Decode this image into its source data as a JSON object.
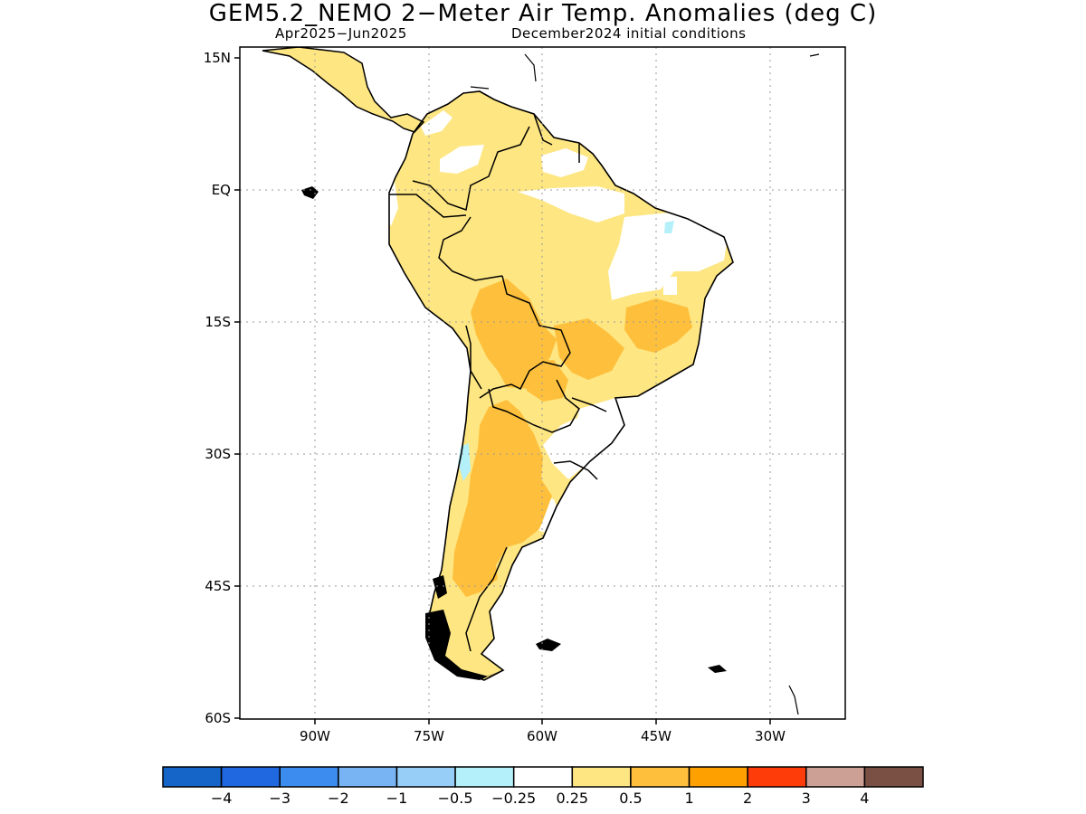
{
  "title": "GEM5.2_NEMO 2−Meter Air Temp. Anomalies (deg C)",
  "subtitle_left": "Apr2025−Jun2025",
  "subtitle_right": "December2024 initial conditions",
  "map": {
    "lat_range": [
      -60,
      15
    ],
    "lon_range": [
      -100,
      -20
    ],
    "lat_ticks": [
      {
        "value": 15,
        "label": "15N"
      },
      {
        "value": 0,
        "label": "EQ"
      },
      {
        "value": -15,
        "label": "15S"
      },
      {
        "value": -30,
        "label": "30S"
      },
      {
        "value": -45,
        "label": "45S"
      },
      {
        "value": -60,
        "label": "60S"
      }
    ],
    "lon_ticks": [
      {
        "value": -90,
        "label": "90W"
      },
      {
        "value": -75,
        "label": "75W"
      },
      {
        "value": -60,
        "label": "60W"
      },
      {
        "value": -45,
        "label": "45W"
      },
      {
        "value": -30,
        "label": "30W"
      }
    ],
    "gridlines": "dotted"
  },
  "colorbar": {
    "colors": [
      "#1565c8",
      "#2068e0",
      "#3c8cf0",
      "#78b4f4",
      "#96cef8",
      "#b4f0fa",
      "#ffffff",
      "#fee682",
      "#fec03c",
      "#fea000",
      "#fd3c0a",
      "#cca094",
      "#7a5044"
    ],
    "labels": [
      "−4",
      "−3",
      "−2",
      "−1",
      "−0.5",
      "−0.25",
      "0.25",
      "0.5",
      "1",
      "2",
      "3",
      "4"
    ]
  },
  "colors": {
    "anomaly_025_05": "#fee682",
    "anomaly_05_1": "#fec03c",
    "anomaly_neg025_neg05": "#b4f0fa",
    "coastline": "#000000"
  }
}
